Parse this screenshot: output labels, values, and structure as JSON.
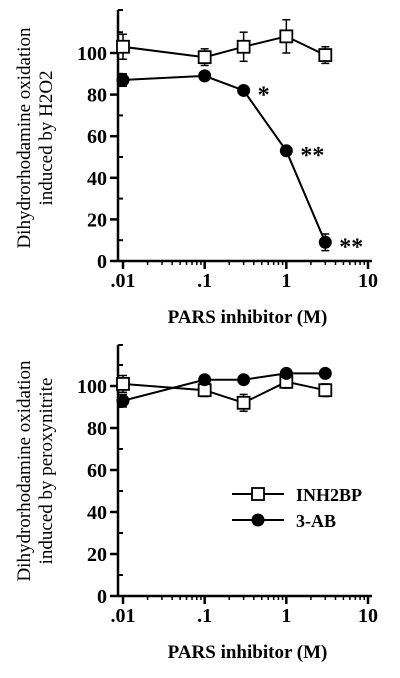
{
  "chart_data": [
    {
      "type": "line",
      "xscale": "log",
      "xlim": [
        0.01,
        10
      ],
      "ylim": [
        0,
        120
      ],
      "yticks": [
        0,
        20,
        40,
        60,
        80,
        100
      ],
      "xticks": [
        ".01",
        ".1",
        "1",
        "10"
      ],
      "ylabel": [
        "Dihydrorhodamine oxidation",
        "induced by H2O2"
      ],
      "xlabel": "PARS inhibitor (M)",
      "series": [
        {
          "name": "INH2BP",
          "marker": "open-square",
          "x": [
            0.01,
            0.1,
            0.3,
            1,
            3
          ],
          "y": [
            103,
            98,
            103,
            108,
            99
          ],
          "err": [
            6,
            4,
            7,
            8,
            4
          ]
        },
        {
          "name": "3-AB",
          "marker": "filled-circle",
          "x": [
            0.01,
            0.1,
            0.3,
            1,
            3
          ],
          "y": [
            87,
            89,
            82,
            53,
            9
          ],
          "err": [
            3,
            2,
            2,
            2,
            4
          ],
          "annotations": [
            "",
            "",
            "*",
            "**",
            "**"
          ]
        }
      ]
    },
    {
      "type": "line",
      "xscale": "log",
      "xlim": [
        0.01,
        10
      ],
      "ylim": [
        0,
        120
      ],
      "yticks": [
        0,
        20,
        40,
        60,
        80,
        100
      ],
      "xticks": [
        ".01",
        ".1",
        "1",
        "10"
      ],
      "ylabel": [
        "Dihydrorhodamine oxidation",
        "induced by peroxynitrite"
      ],
      "xlabel": "PARS inhibitor (M)",
      "legend": {
        "placement": "right"
      },
      "series": [
        {
          "name": "INH2BP",
          "marker": "open-square",
          "x": [
            0.01,
            0.1,
            0.3,
            1,
            3
          ],
          "y": [
            101,
            98,
            92,
            102,
            98
          ],
          "err": [
            4,
            3,
            4,
            3,
            3
          ]
        },
        {
          "name": "3-AB",
          "marker": "filled-circle",
          "x": [
            0.01,
            0.1,
            0.3,
            1,
            3
          ],
          "y": [
            93,
            103,
            103,
            106,
            106
          ],
          "err": [
            3,
            2,
            2,
            2,
            2
          ]
        }
      ]
    }
  ]
}
